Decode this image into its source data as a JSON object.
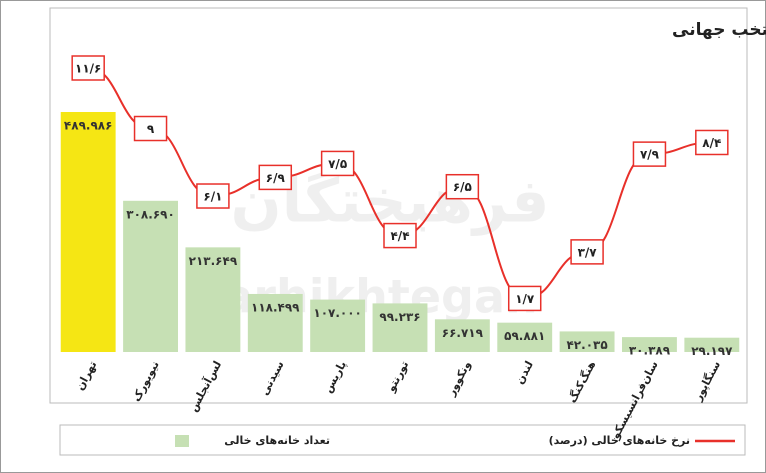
{
  "chart_data": {
    "type": "bar",
    "title": "مقایسه تعداد و نسبت خانه‌های خالی تهران با برخی شهرهای منتخب جهانی",
    "watermark": [
      "فرهیختگان",
      "farhikhtegan"
    ],
    "categories": [
      "تهران",
      "نیویورک",
      "لس‌آنجلس",
      "سیدنی",
      "پاریس",
      "تورنتو",
      "ونکوور",
      "لندن",
      "هنگ‌کنگ",
      "سان‌فرانسیسکو",
      "سنگاپور"
    ],
    "series": [
      {
        "name": "تعداد خانه‌های خالی",
        "type": "bar",
        "color": "#c6e0b4",
        "colors": [
          "#f5e614",
          "#c6e0b4",
          "#c6e0b4",
          "#c6e0b4",
          "#c6e0b4",
          "#c6e0b4",
          "#c6e0b4",
          "#c6e0b4",
          "#c6e0b4",
          "#c6e0b4",
          "#c6e0b4"
        ],
        "values": [
          489986,
          308690,
          213649,
          118499,
          107000,
          99236,
          66719,
          59881,
          42035,
          30389,
          29197
        ],
        "value_labels": [
          "۴۸۹.۹۸۶",
          "۳۰۸.۶۹۰",
          "۲۱۳.۶۴۹",
          "۱۱۸.۴۹۹",
          "۱۰۷.۰۰۰",
          "۹۹.۲۳۶",
          "۶۶.۷۱۹",
          "۵۹.۸۸۱",
          "۴۲.۰۳۵",
          "۳۰.۳۸۹",
          "۲۹.۱۹۷"
        ]
      },
      {
        "name": "نرخ خانه‌های خالی (درصد)",
        "type": "line",
        "color": "#e8302a",
        "values": [
          11.6,
          9,
          6.1,
          6.9,
          7.5,
          4.4,
          6.5,
          1.7,
          3.7,
          7.9,
          8.4
        ],
        "value_labels": [
          "۱۱/۶",
          "۹",
          "۶/۱",
          "۶/۹",
          "۷/۵",
          "۴/۴",
          "۶/۵",
          "۱/۷",
          "۳/۷",
          "۷/۹",
          "۸/۴"
        ]
      }
    ]
  }
}
